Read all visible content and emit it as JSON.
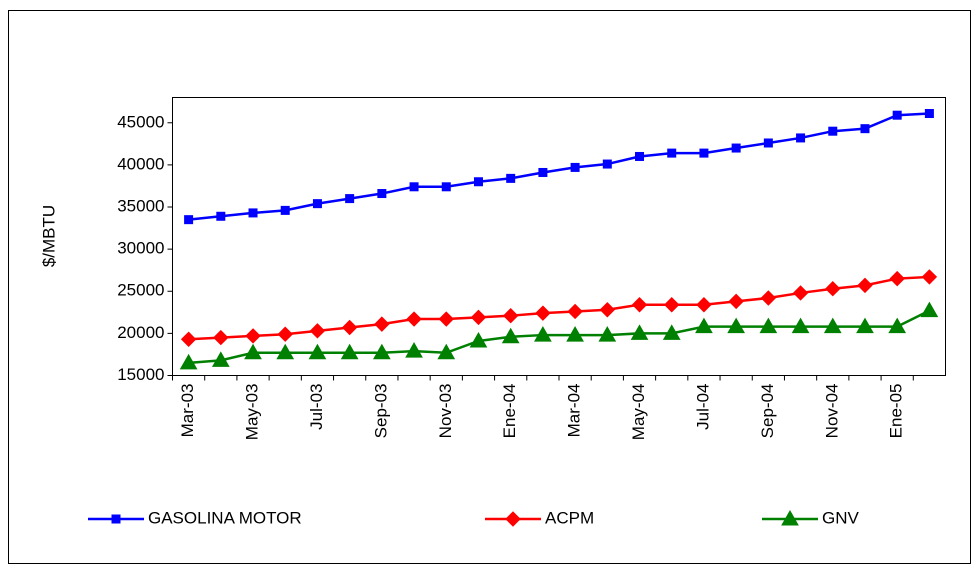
{
  "chart_data": {
    "type": "line",
    "ylabel": "$/MBTU",
    "categories": [
      "Mar-03",
      null,
      "May-03",
      null,
      "Jul-03",
      null,
      "Sep-03",
      null,
      "Nov-03",
      null,
      "Ene-04",
      null,
      "Mar-04",
      null,
      "May-04",
      null,
      "Jul-04",
      null,
      "Sep-04",
      null,
      "Nov-04",
      null,
      "Ene-05",
      null
    ],
    "series": [
      {
        "name": "GASOLINA MOTOR",
        "color": "#0000ff",
        "marker": "square",
        "values": [
          33500,
          33900,
          34300,
          34600,
          35400,
          36000,
          36600,
          37400,
          37400,
          38000,
          38400,
          39100,
          39700,
          40100,
          41000,
          41400,
          41400,
          42000,
          42600,
          43200,
          44000,
          44300,
          45900,
          46100
        ]
      },
      {
        "name": "ACPM",
        "color": "#ff0000",
        "marker": "diamond",
        "values": [
          19300,
          19500,
          19700,
          19900,
          20300,
          20700,
          21100,
          21700,
          21700,
          21900,
          22100,
          22400,
          22600,
          22800,
          23400,
          23400,
          23400,
          23800,
          24200,
          24800,
          25300,
          25700,
          26500,
          26700
        ]
      },
      {
        "name": "GNV",
        "color": "#008000",
        "marker": "triangle",
        "values": [
          16500,
          16800,
          17700,
          17700,
          17700,
          17700,
          17700,
          17900,
          17700,
          19100,
          19600,
          19800,
          19800,
          19800,
          20000,
          20000,
          20800,
          20800,
          20800,
          20800,
          20800,
          20800,
          20800,
          22700
        ]
      }
    ],
    "ylim": [
      15000,
      48000
    ],
    "yticks": [
      15000,
      20000,
      25000,
      30000,
      35000,
      40000,
      45000
    ],
    "grid": false,
    "legend": "bottom"
  }
}
